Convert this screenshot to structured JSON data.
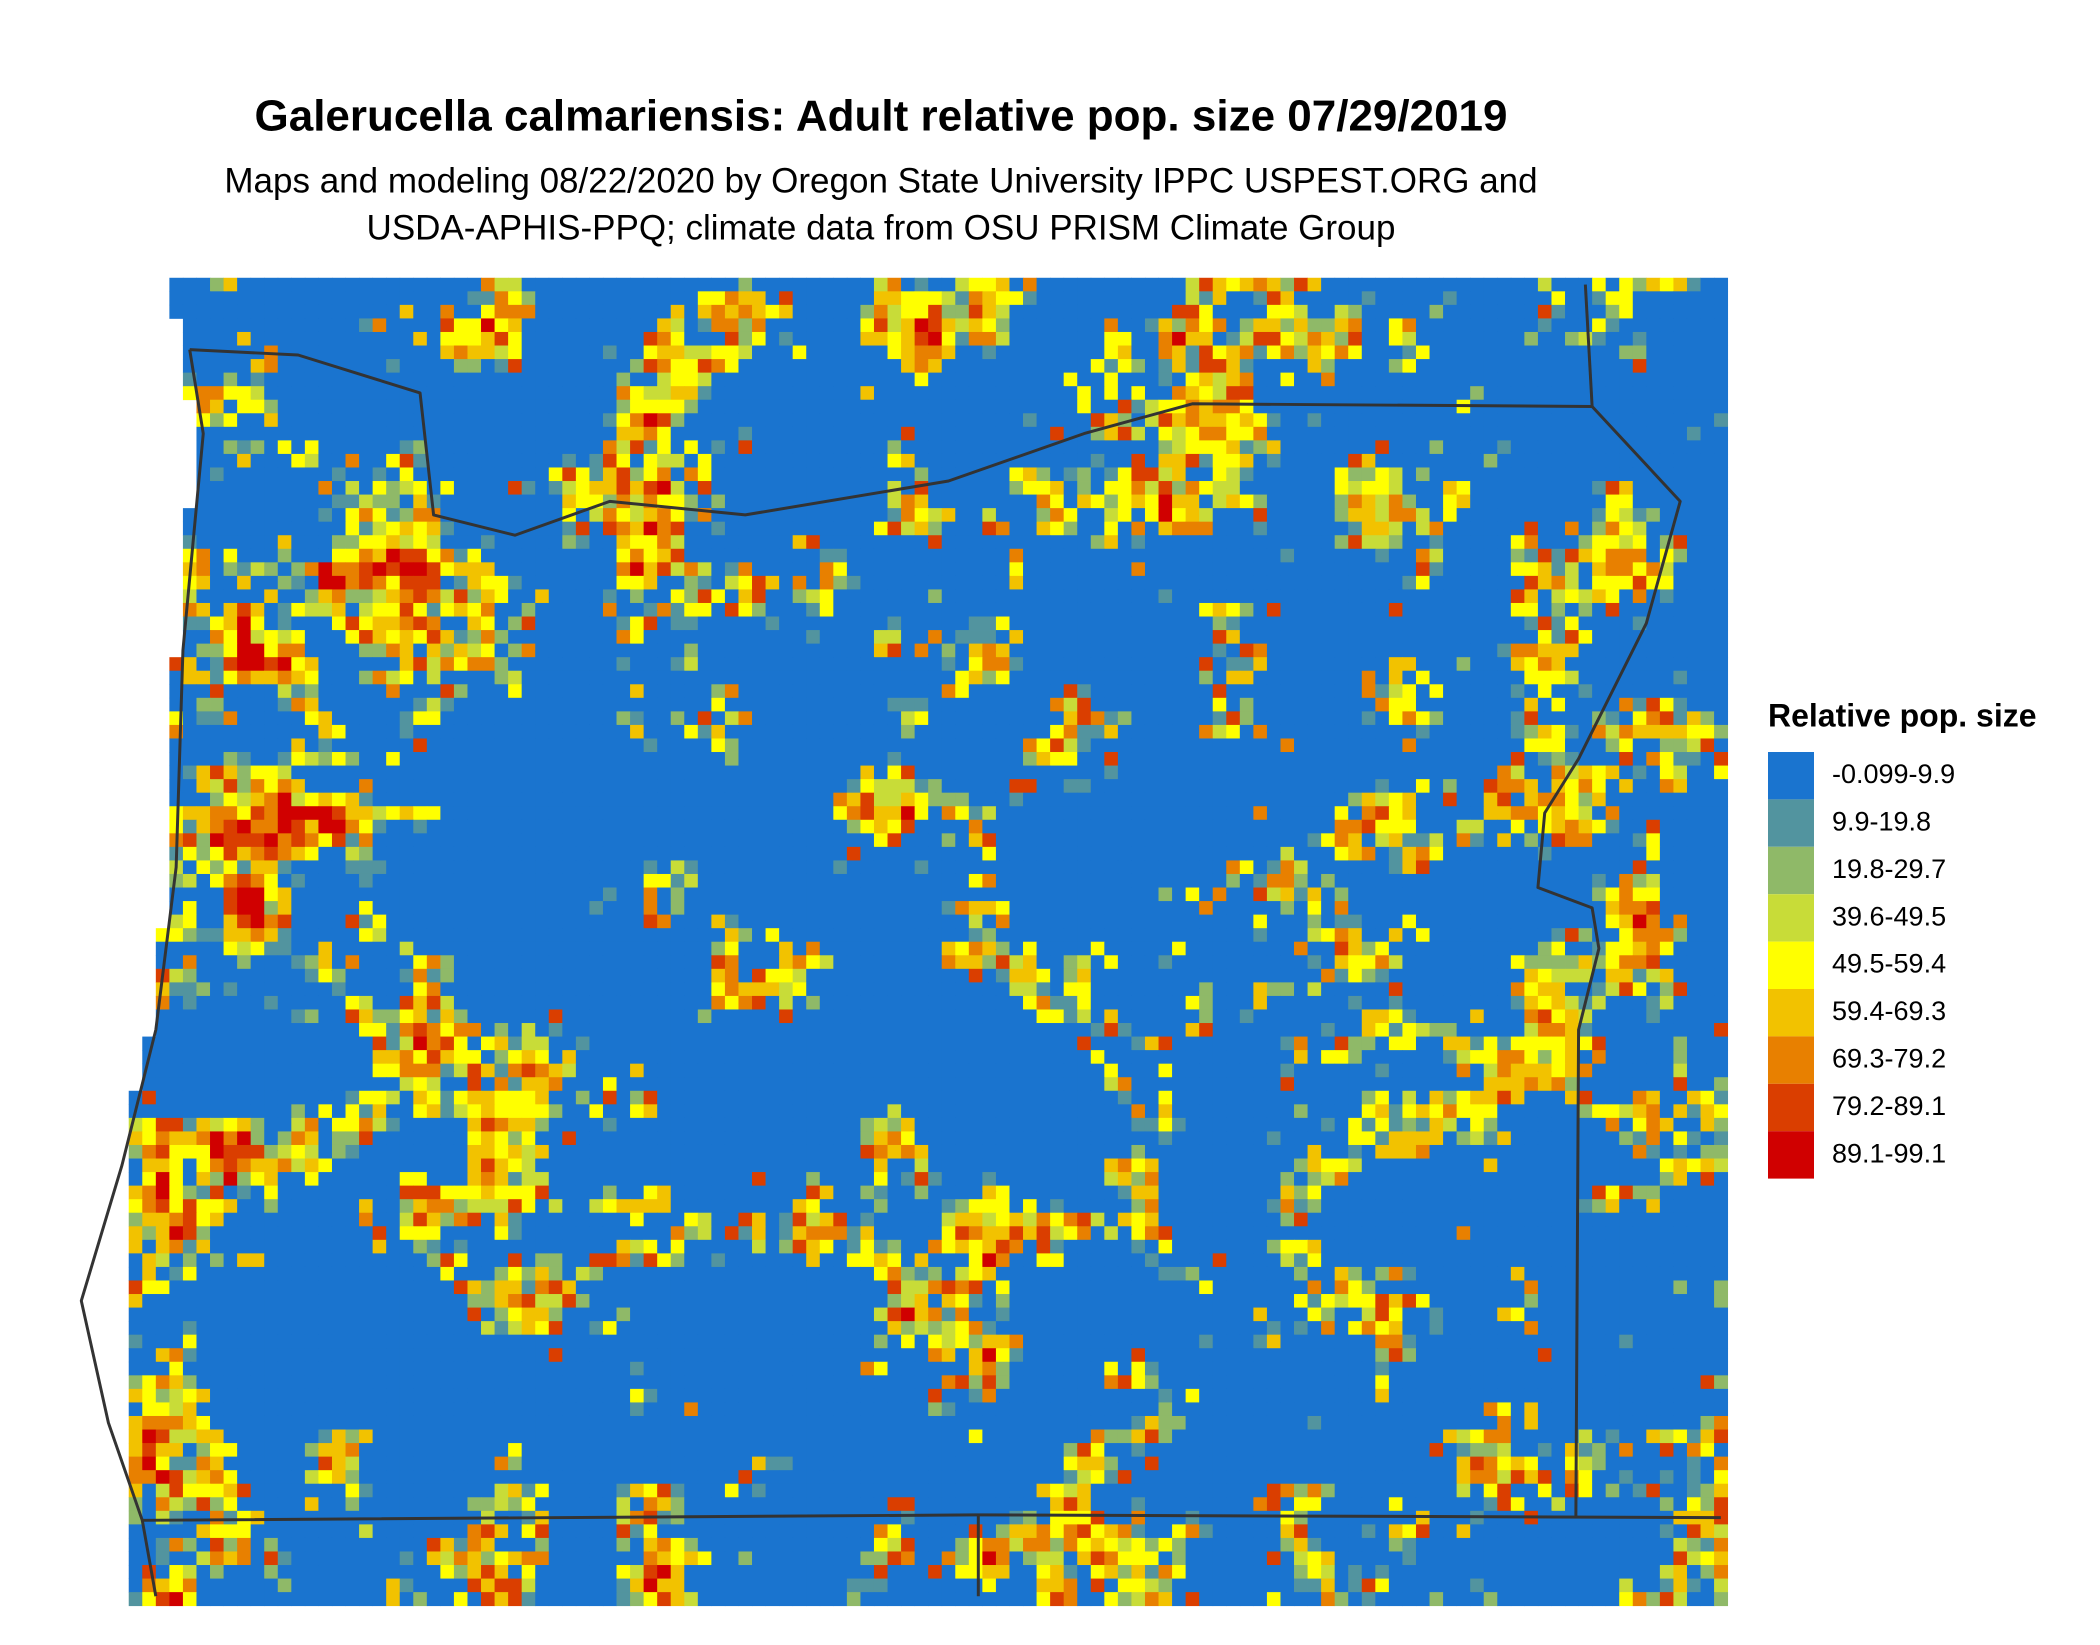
{
  "title": "Galerucella calmariensis: Adult relative pop. size 07/29/2019",
  "subtitle": [
    "Maps and modeling 08/22/2020 by Oregon State University IPPC USPEST.ORG and",
    "USDA-APHIS-PPQ; climate data from OSU PRISM Climate Group"
  ],
  "legend": {
    "title": "Relative pop. size",
    "items": [
      {
        "label": "-0.099-9.9",
        "color": "#1a74cf"
      },
      {
        "label": "9.9-19.8",
        "color": "#52949f"
      },
      {
        "label": "19.8-29.7",
        "color": "#8fb968"
      },
      {
        "label": "39.6-49.5",
        "color": "#c8dc38"
      },
      {
        "label": "49.5-59.4",
        "color": "#ffff00"
      },
      {
        "label": "59.4-69.3",
        "color": "#f2c200"
      },
      {
        "label": "69.3-79.2",
        "color": "#e88000"
      },
      {
        "label": "79.2-89.1",
        "color": "#da3e00"
      },
      {
        "label": "89.1-99.1",
        "color": "#d00000"
      }
    ]
  }
}
